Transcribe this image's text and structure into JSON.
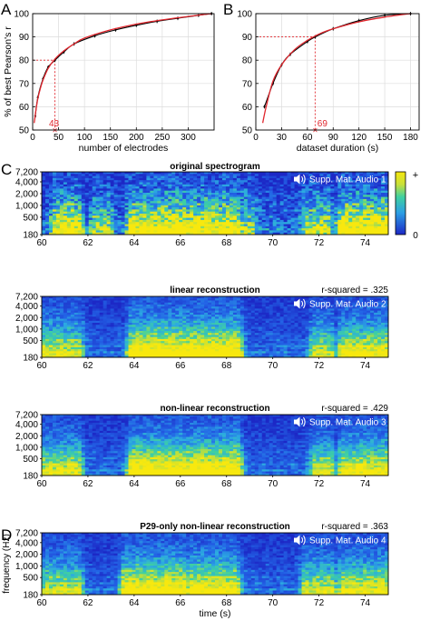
{
  "panel_labels": [
    "A",
    "B",
    "C",
    "D"
  ],
  "colorbar": {
    "max_label": "+",
    "min_label": "0"
  },
  "speaker_icon": "speaker-icon",
  "colors": {
    "black_curve": "#000000",
    "red_curve": "#e0262d",
    "red_guide": "#e0262d",
    "grid": "#dcdcdc"
  },
  "chart_data": [
    {
      "type": "line",
      "panel": "A",
      "xlabel": "number of electrodes",
      "ylabel": "% of best Pearson's r",
      "xlim": [
        0,
        350
      ],
      "ylim": [
        50,
        100
      ],
      "xticks": [
        "0",
        "50",
        "100",
        "150",
        "200",
        "250",
        "300"
      ],
      "yticks": [
        "50",
        "60",
        "70",
        "80",
        "90",
        "100"
      ],
      "grid": true,
      "guide": {
        "x": 43,
        "y": 80,
        "label": "43"
      },
      "series": [
        {
          "color": "black",
          "x": [
            5,
            10,
            20,
            30,
            43,
            60,
            80,
            120,
            160,
            200,
            240,
            280,
            320,
            345
          ],
          "y": [
            56,
            64,
            72,
            77,
            80,
            83.5,
            87,
            90.5,
            93,
            95,
            96.7,
            98,
            99.3,
            100
          ]
        },
        {
          "color": "red",
          "x": [
            3,
            6,
            10,
            15,
            20,
            30,
            43,
            60,
            80,
            100,
            150,
            200,
            250,
            300,
            345
          ],
          "y": [
            53,
            58,
            63.5,
            68,
            71.5,
            76.5,
            80.5,
            84,
            87,
            89.5,
            93,
            95.5,
            97.3,
            98.8,
            100
          ]
        }
      ]
    },
    {
      "type": "line",
      "panel": "B",
      "xlabel": "dataset duration (s)",
      "xlim": [
        0,
        190
      ],
      "ylim": [
        50,
        100
      ],
      "xticks": [
        "0",
        "30",
        "60",
        "90",
        "120",
        "150",
        "180"
      ],
      "yticks": [
        "50",
        "60",
        "70",
        "80",
        "90",
        "100"
      ],
      "grid": true,
      "guide": {
        "x": 69,
        "y": 90,
        "label": "69"
      },
      "series": [
        {
          "color": "black",
          "x": [
            10,
            20,
            30,
            40,
            60,
            69,
            90,
            120,
            150,
            180
          ],
          "y": [
            60,
            70,
            78,
            82.5,
            88,
            90,
            93.5,
            97,
            99.3,
            100
          ]
        },
        {
          "color": "red",
          "x": [
            8,
            12,
            20,
            30,
            45,
            60,
            75,
            90,
            120,
            150,
            180
          ],
          "y": [
            53,
            60,
            71,
            78,
            84.5,
            88.5,
            91.5,
            93.5,
            96.5,
            98.5,
            100
          ]
        }
      ]
    },
    {
      "type": "heatmap",
      "panel": "C",
      "title": "original spectrogram",
      "audio_label": "Supp. Mat. Audio 1",
      "yticks": [
        "7,200",
        "4,000",
        "2,000",
        "1,000",
        "500",
        "180"
      ],
      "xticks": [
        "60",
        "62",
        "64",
        "66",
        "68",
        "70",
        "72",
        "74"
      ],
      "xlim": [
        60,
        75
      ]
    },
    {
      "type": "heatmap",
      "title": "linear reconstruction",
      "r_squared_label": "r-squared = .325",
      "audio_label": "Supp. Mat. Audio 2",
      "yticks": [
        "7,200",
        "4,000",
        "2,000",
        "1,000",
        "500",
        "180"
      ],
      "xticks": [
        "60",
        "62",
        "64",
        "66",
        "68",
        "70",
        "72",
        "74"
      ],
      "xlim": [
        60,
        75
      ]
    },
    {
      "type": "heatmap",
      "title": "non-linear reconstruction",
      "r_squared_label": "r-squared = .429",
      "audio_label": "Supp. Mat. Audio 3",
      "yticks": [
        "7,200",
        "4,000",
        "2,000",
        "1,000",
        "500",
        "180"
      ],
      "xticks": [
        "60",
        "62",
        "64",
        "66",
        "68",
        "70",
        "72",
        "74"
      ],
      "xlim": [
        60,
        75
      ]
    },
    {
      "type": "heatmap",
      "panel": "D",
      "title": "P29-only non-linear reconstruction",
      "r_squared_label": "r-squared = .363",
      "audio_label": "Supp. Mat. Audio 4",
      "ylabel": "frequency (Hz)",
      "xlabel": "time (s)",
      "yticks": [
        "7,200",
        "4,000",
        "2,000",
        "1,000",
        "500",
        "180"
      ],
      "xticks": [
        "60",
        "62",
        "64",
        "66",
        "68",
        "70",
        "72",
        "74"
      ],
      "xlim": [
        60,
        75
      ]
    }
  ]
}
